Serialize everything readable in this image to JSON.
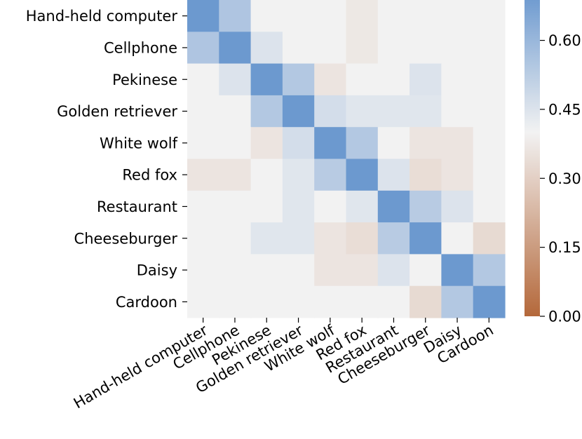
{
  "chart_data": {
    "type": "heatmap",
    "title": "",
    "xlabel": "",
    "ylabel": "",
    "rows": [
      "Hand-held computer",
      "Cellphone",
      "Pekinese",
      "Golden retriever",
      "White wolf",
      "Red fox",
      "Restaurant",
      "Cheeseburger",
      "Daisy",
      "Cardoon"
    ],
    "columns": [
      "Hand-held computer",
      "Cellphone",
      "Pekinese",
      "Golden retriever",
      "White wolf",
      "Red fox",
      "Restaurant",
      "Cheeseburger",
      "Daisy",
      "Cardoon"
    ],
    "values": [
      [
        0.7,
        0.55,
        0.4,
        0.4,
        0.4,
        0.37,
        0.4,
        0.4,
        0.4,
        0.4
      ],
      [
        0.55,
        0.7,
        0.45,
        0.4,
        0.4,
        0.37,
        0.4,
        0.4,
        0.4,
        0.4
      ],
      [
        0.4,
        0.45,
        0.7,
        0.54,
        0.36,
        0.4,
        0.4,
        0.45,
        0.4,
        0.4
      ],
      [
        0.4,
        0.4,
        0.54,
        0.7,
        0.47,
        0.44,
        0.44,
        0.44,
        0.4,
        0.4
      ],
      [
        0.4,
        0.4,
        0.36,
        0.47,
        0.7,
        0.54,
        0.4,
        0.36,
        0.36,
        0.4
      ],
      [
        0.36,
        0.36,
        0.4,
        0.44,
        0.53,
        0.7,
        0.45,
        0.34,
        0.36,
        0.4
      ],
      [
        0.4,
        0.4,
        0.4,
        0.44,
        0.4,
        0.44,
        0.7,
        0.53,
        0.45,
        0.4
      ],
      [
        0.4,
        0.4,
        0.44,
        0.44,
        0.36,
        0.34,
        0.53,
        0.7,
        0.4,
        0.33
      ],
      [
        0.4,
        0.4,
        0.4,
        0.4,
        0.36,
        0.36,
        0.45,
        0.4,
        0.7,
        0.54
      ],
      [
        0.4,
        0.4,
        0.4,
        0.4,
        0.4,
        0.4,
        0.4,
        0.33,
        0.54,
        0.7
      ]
    ],
    "colorbar": {
      "range": [
        0.0,
        0.7
      ],
      "ticks": [
        "0.00",
        "0.15",
        "0.30",
        "0.45",
        "0.60"
      ],
      "tick_values": [
        0.0,
        0.15,
        0.3,
        0.45,
        0.6
      ],
      "low_color": "#b4683a",
      "mid_color": "#f2f2f2",
      "high_color": "#6c99cf",
      "center": 0.4
    },
    "grid": false
  }
}
